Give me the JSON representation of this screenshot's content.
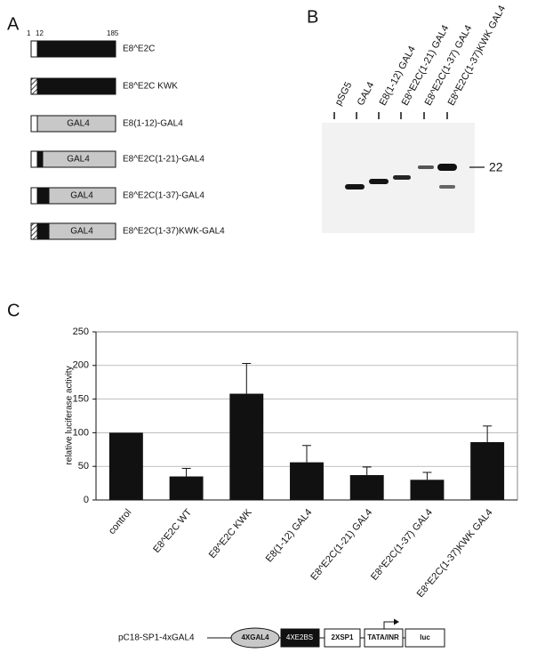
{
  "panel_a": {
    "label": "A",
    "ruler": [
      "1",
      "12",
      "185"
    ],
    "constructs": [
      "E8^E2C",
      "E8^E2C KWK",
      "E8(1-12)-GAL4",
      "E8^E2C(1-21)-GAL4",
      "E8^E2C(1-37)-GAL4",
      "E8^E2C(1-37)KWK-GAL4"
    ],
    "domain": "GAL4"
  },
  "panel_b": {
    "label": "B",
    "lanes": [
      "pSG5",
      "GAL4",
      "E8(1-12) GAL4",
      "E8^E2C(1-21) GAL4",
      "E8^E2C(1-37) GAL4",
      "E8^E2C(1-37)KWK GAL4"
    ],
    "marker": "22"
  },
  "panel_c": {
    "label": "C"
  },
  "chart_data": {
    "type": "bar",
    "y_label": "relative luciferase activity",
    "categories": [
      "control",
      "E8^E2C WT",
      "E8^E2C KWK",
      "E8(1-12) GAL4",
      "E8^E2C(1-21) GAL4",
      "E8^E2C(1-37) GAL4",
      "E8^E2C(1-37)KWK GAL4"
    ],
    "values": [
      100,
      35,
      158,
      56,
      37,
      30,
      86
    ],
    "errors": [
      0,
      12,
      45,
      25,
      12,
      11,
      24
    ],
    "color": "#111111",
    "ylim": [
      0,
      250
    ],
    "yticks": [
      0,
      50,
      100,
      150,
      200,
      250
    ],
    "grid": true
  },
  "panel_d": {
    "construct": "pC18-SP1-4xGAL4",
    "elements": [
      "4XGAL4",
      "4XE2BS",
      "2XSP1",
      "TATA/INR",
      "luc"
    ]
  }
}
